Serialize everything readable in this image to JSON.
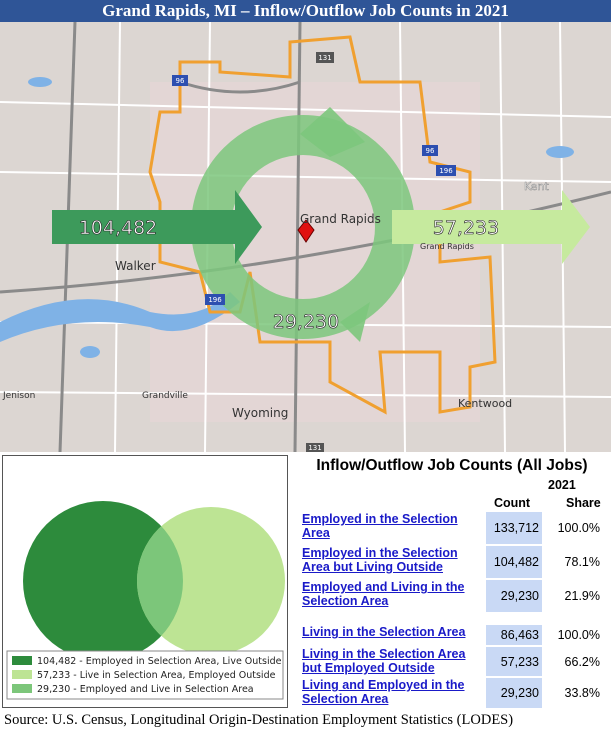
{
  "header": {
    "title": "Grand Rapids, MI – Inflow/Outflow Job Counts in 2021"
  },
  "map": {
    "places": [
      "Grand Rapids",
      "Walker",
      "Wyoming",
      "Kentwood",
      "Grandville",
      "Jenison",
      "Kent",
      "Grand Rapids"
    ],
    "shields": [
      "131",
      "96",
      "96",
      "196",
      "196",
      "131"
    ],
    "inflow": "104,482",
    "outflow": "57,233",
    "interior": "29,230"
  },
  "venn": {
    "legend": [
      "104,482 - Employed in Selection Area, Live Outside",
      "57,233 - Live in Selection Area, Employed Outside",
      "29,230 - Employed and Live in Selection Area"
    ]
  },
  "table": {
    "title": "Inflow/Outflow Job Counts (All Jobs)",
    "year": "2021",
    "columns": [
      "Count",
      "Share"
    ],
    "rows": [
      [
        "Employed in the Selection Area",
        "133,712",
        "100.0%"
      ],
      [
        "Employed in the Selection Area but Living Outside",
        "104,482",
        "78.1%"
      ],
      [
        "Employed and Living in the Selection Area",
        "29,230",
        "21.9%"
      ],
      [
        "Living in the Selection Area",
        "86,463",
        "100.0%"
      ],
      [
        "Living in the Selection Area but Employed Outside",
        "57,233",
        "66.2%"
      ],
      [
        "Living and Employed in the Selection Area",
        "29,230",
        "33.8%"
      ]
    ]
  },
  "source": "Source: U.S. Census, Longitudinal Origin-Destination Employment Statistics (LODES)"
}
